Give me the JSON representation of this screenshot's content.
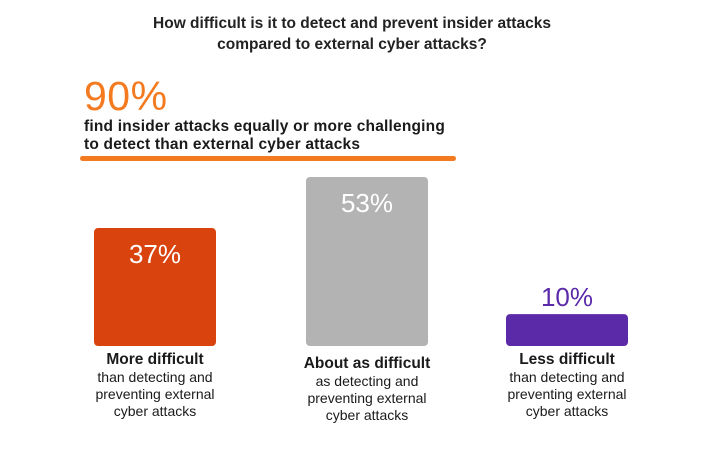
{
  "title_lines": [
    "How difficult is it to detect and prevent insider attacks",
    "compared to external cyber attacks?"
  ],
  "headline": {
    "value": "90%",
    "text_lines": [
      "find insider attacks equally or more challenging",
      "to detect than external cyber attacks"
    ],
    "color": "#f47a20"
  },
  "chart_data": {
    "type": "bar",
    "title": "How difficult is it to detect and prevent insider attacks compared to external cyber attacks?",
    "categories": [
      "More difficult",
      "About as difficult",
      "Less difficult"
    ],
    "values": [
      37,
      53,
      10
    ],
    "unit": "%",
    "value_labels": [
      "37%",
      "53%",
      "10%"
    ],
    "colors": [
      "#d9430d",
      "#b3b3b3",
      "#5b2aa8"
    ],
    "value_label_colors": [
      "#ffffff",
      "#ffffff",
      "#5b2aa8"
    ],
    "descriptions": [
      [
        "than detecting and",
        "preventing external",
        "cyber attacks"
      ],
      [
        "as detecting and",
        "preventing external",
        "cyber attacks"
      ],
      [
        "than detecting and",
        "preventing external",
        "cyber attacks"
      ]
    ],
    "ylim": [
      0,
      53
    ],
    "grid": false,
    "legend": "none"
  }
}
